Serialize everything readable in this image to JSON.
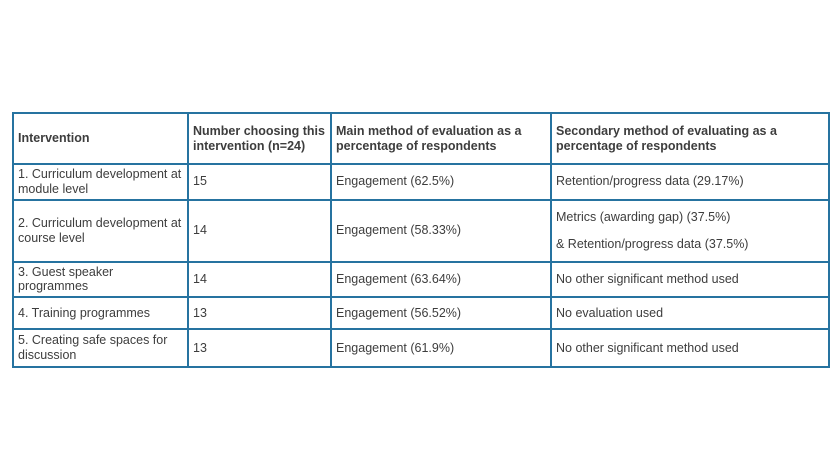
{
  "page": {
    "background_color": "#ffffff"
  },
  "table": {
    "border_color": "#2673a0",
    "text_color": "#3d3d3d",
    "headers": [
      "Intervention",
      "Number choosing this intervention (n=24)",
      "Main method of evaluation as a percentage of respondents",
      "Secondary method of evaluating as a percentage of respondents"
    ],
    "rows": [
      {
        "intervention": "1. Curriculum development at module level",
        "count": "15",
        "main": "Engagement (62.5%)",
        "secondary": [
          "Retention/progress data (29.17%)"
        ]
      },
      {
        "intervention": "2. Curriculum development at course level",
        "count": "14",
        "main": "Engagement (58.33%)",
        "secondary": [
          "Metrics (awarding gap) (37.5%)",
          "& Retention/progress data (37.5%)"
        ]
      },
      {
        "intervention": "3. Guest speaker programmes",
        "count": "14",
        "main": "Engagement (63.64%)",
        "secondary": [
          "No other significant method used"
        ]
      },
      {
        "intervention": "4. Training programmes",
        "count": "13",
        "main": "Engagement (56.52%)",
        "secondary": [
          "No evaluation used"
        ]
      },
      {
        "intervention": "5. Creating safe spaces for discussion",
        "count": "13",
        "main": "Engagement (61.9%)",
        "secondary": [
          "No other significant method used"
        ]
      }
    ]
  }
}
